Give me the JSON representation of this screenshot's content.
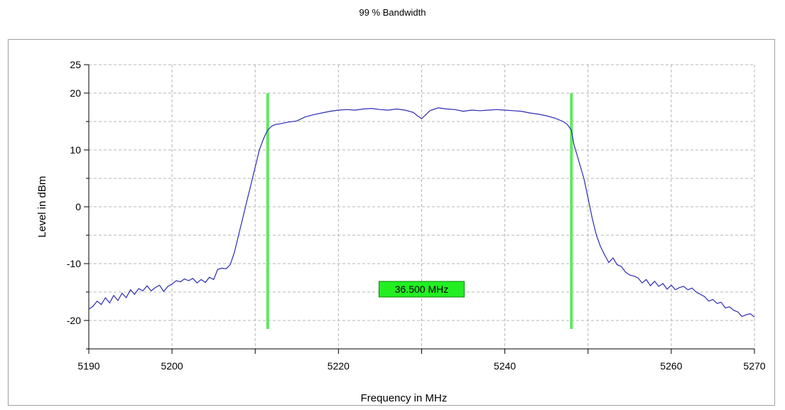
{
  "chart_data": {
    "type": "line",
    "title": "99 % Bandwidth",
    "xlabel": "Frequency in MHz",
    "ylabel": "Level in dBm",
    "xlim": [
      5190,
      5270
    ],
    "ylim": [
      -25,
      25
    ],
    "x_ticks": [
      5190,
      5200,
      5220,
      5240,
      5260,
      5270
    ],
    "x_grid": [
      5190,
      5200,
      5210,
      5220,
      5230,
      5240,
      5250,
      5260,
      5270
    ],
    "y_ticks": [
      25,
      20,
      10,
      0,
      -10,
      -20
    ],
    "y_grid": [
      25,
      20,
      15,
      10,
      5,
      0,
      -5,
      -10,
      -15,
      -20,
      -25
    ],
    "grid": true,
    "series": [
      {
        "color": "#2b2bb3",
        "x": [
          5190.0,
          5190.5,
          5191.0,
          5191.5,
          5192.0,
          5192.5,
          5193.0,
          5193.5,
          5194.0,
          5194.5,
          5195.0,
          5195.5,
          5196.0,
          5196.5,
          5197.0,
          5197.5,
          5198.0,
          5198.5,
          5199.0,
          5199.5,
          5200.0,
          5200.5,
          5201.0,
          5201.5,
          5202.0,
          5202.5,
          5203.0,
          5203.5,
          5204.0,
          5204.5,
          5205.0,
          5205.5,
          5206.0,
          5206.5,
          5207.0,
          5207.5,
          5208.0,
          5208.5,
          5209.0,
          5209.5,
          5210.0,
          5210.5,
          5211.0,
          5211.5,
          5212.0,
          5212.5,
          5213.0,
          5214.0,
          5215.0,
          5216.0,
          5217.0,
          5218.0,
          5219.0,
          5220.0,
          5221.0,
          5222.0,
          5223.0,
          5224.0,
          5225.0,
          5226.0,
          5227.0,
          5228.0,
          5229.0,
          5229.5,
          5230.0,
          5230.5,
          5231.0,
          5232.0,
          5233.0,
          5234.0,
          5235.0,
          5236.0,
          5237.0,
          5238.0,
          5239.0,
          5240.0,
          5241.0,
          5242.0,
          5243.0,
          5244.0,
          5245.0,
          5246.0,
          5247.0,
          5247.5,
          5248.0,
          5248.3,
          5248.7,
          5249.0,
          5249.5,
          5250.0,
          5250.5,
          5251.0,
          5251.5,
          5252.0,
          5252.5,
          5253.0,
          5253.5,
          5254.0,
          5254.5,
          5255.0,
          5255.5,
          5256.0,
          5256.5,
          5257.0,
          5257.5,
          5258.0,
          5258.5,
          5259.0,
          5259.5,
          5260.0,
          5260.5,
          5261.0,
          5261.5,
          5262.0,
          5262.5,
          5263.0,
          5263.5,
          5264.0,
          5264.5,
          5265.0,
          5265.5,
          5266.0,
          5266.5,
          5267.0,
          5267.5,
          5268.0,
          5268.5,
          5269.0,
          5269.5,
          5270.0
        ],
        "y": [
          -18.0,
          -17.5,
          -16.6,
          -17.2,
          -16.0,
          -16.9,
          -15.6,
          -16.5,
          -15.2,
          -16.0,
          -14.6,
          -15.4,
          -14.4,
          -14.8,
          -13.9,
          -14.8,
          -14.2,
          -13.8,
          -14.9,
          -14.0,
          -13.6,
          -13.0,
          -13.2,
          -12.7,
          -13.0,
          -12.6,
          -13.4,
          -12.8,
          -13.3,
          -12.4,
          -12.8,
          -11.0,
          -10.8,
          -10.9,
          -10.2,
          -8.0,
          -5.0,
          -2.0,
          1.0,
          4.0,
          7.0,
          10.0,
          12.0,
          13.5,
          14.2,
          14.5,
          14.6,
          14.9,
          15.1,
          15.8,
          16.2,
          16.5,
          16.8,
          17.0,
          17.1,
          17.0,
          17.2,
          17.3,
          17.1,
          17.0,
          17.2,
          17.0,
          16.6,
          16.0,
          15.5,
          16.2,
          16.9,
          17.4,
          17.2,
          17.1,
          16.8,
          17.0,
          16.9,
          17.0,
          17.1,
          17.0,
          16.9,
          16.8,
          16.5,
          16.3,
          16.0,
          15.6,
          15.0,
          14.5,
          13.5,
          11.0,
          9.0,
          7.5,
          5.0,
          1.5,
          -2.0,
          -5.0,
          -7.0,
          -8.5,
          -9.8,
          -9.0,
          -10.2,
          -10.5,
          -11.5,
          -12.0,
          -12.2,
          -12.5,
          -13.4,
          -12.8,
          -13.9,
          -13.1,
          -14.0,
          -13.5,
          -14.5,
          -13.8,
          -14.6,
          -14.2,
          -14.0,
          -14.6,
          -14.3,
          -15.0,
          -15.4,
          -15.8,
          -16.6,
          -16.3,
          -17.0,
          -16.8,
          -17.8,
          -17.6,
          -18.2,
          -18.5,
          -19.3,
          -19.0,
          -18.8,
          -19.4
        ]
      }
    ],
    "markers": [
      {
        "x": 5211.5,
        "y_range": [
          -21.5,
          20
        ],
        "color": "#5fe85f"
      },
      {
        "x": 5248.0,
        "y_range": [
          -21.5,
          20
        ],
        "color": "#5fe85f"
      }
    ],
    "annotation": {
      "text": "36.500 MHz",
      "x": 5230,
      "y": -14.5,
      "bg": "#22ee22",
      "border": "#0a8a0a"
    }
  }
}
